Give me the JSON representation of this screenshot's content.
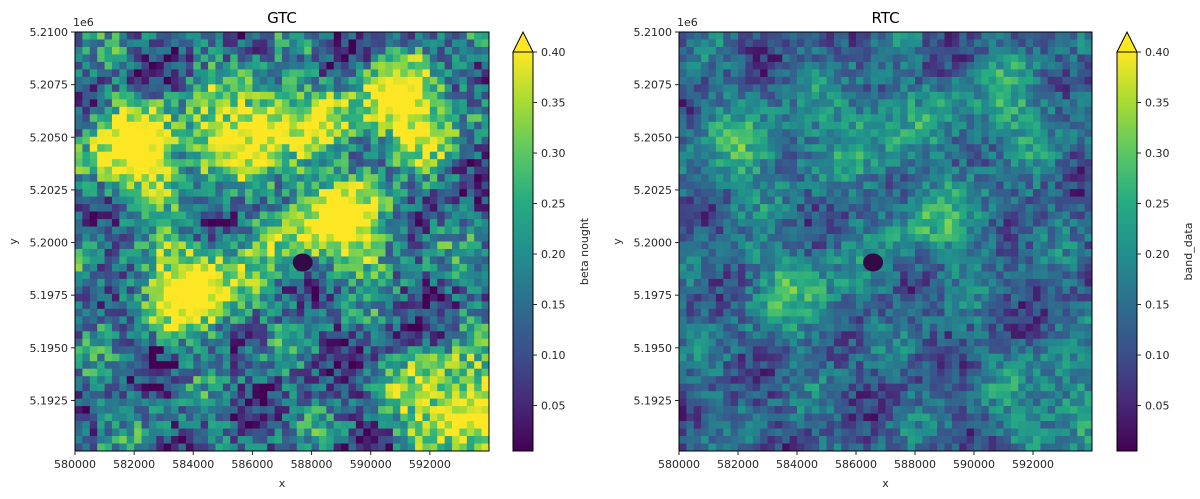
{
  "chart_data": [
    {
      "type": "heatmap",
      "title": "GTC",
      "xlabel": "x",
      "ylabel": "y",
      "y_offset_label": "1e6",
      "xlim": [
        580000,
        594000
      ],
      "ylim": [
        5190100,
        5210000
      ],
      "x_ticks": [
        580000,
        582000,
        584000,
        586000,
        588000,
        590000,
        592000
      ],
      "x_tick_labels": [
        "580000",
        "582000",
        "584000",
        "586000",
        "588000",
        "590000",
        "592000"
      ],
      "y_ticks": [
        5192500,
        5195000,
        5197500,
        5200000,
        5202500,
        5205000,
        5207500,
        5210000
      ],
      "y_tick_labels": [
        "5.1925",
        "5.1950",
        "5.1975",
        "5.2000",
        "5.2025",
        "5.2050",
        "5.2075",
        "5.2100"
      ],
      "colorbar": {
        "label": "beta nought",
        "colormap": "viridis",
        "vmin": 0.005,
        "vmax": 0.4,
        "extend": "max",
        "ticks": [
          0.05,
          0.1,
          0.15,
          0.2,
          0.25,
          0.3,
          0.35,
          0.4
        ],
        "tick_labels": [
          "0.05",
          "0.10",
          "0.15",
          "0.20",
          "0.25",
          "0.30",
          "0.35",
          "0.40"
        ]
      },
      "grid": false
    },
    {
      "type": "heatmap",
      "title": "RTC",
      "xlabel": "x",
      "ylabel": "y",
      "y_offset_label": "1e6",
      "xlim": [
        580000,
        594000
      ],
      "ylim": [
        5190100,
        5210000
      ],
      "x_ticks": [
        580000,
        582000,
        584000,
        586000,
        588000,
        590000,
        592000
      ],
      "x_tick_labels": [
        "580000",
        "582000",
        "584000",
        "586000",
        "588000",
        "590000",
        "592000"
      ],
      "y_ticks": [
        5192500,
        5195000,
        5197500,
        5200000,
        5202500,
        5205000,
        5207500,
        5210000
      ],
      "y_tick_labels": [
        "5.1925",
        "5.1950",
        "5.1975",
        "5.2000",
        "5.2025",
        "5.2050",
        "5.2075",
        "5.2100"
      ],
      "colorbar": {
        "label": "band_data",
        "colormap": "viridis",
        "vmin": 0.005,
        "vmax": 0.4,
        "extend": "max",
        "ticks": [
          0.05,
          0.1,
          0.15,
          0.2,
          0.25,
          0.3,
          0.35,
          0.4
        ],
        "tick_labels": [
          "0.05",
          "0.10",
          "0.15",
          "0.20",
          "0.25",
          "0.30",
          "0.35",
          "0.40"
        ]
      },
      "grid": false
    }
  ]
}
